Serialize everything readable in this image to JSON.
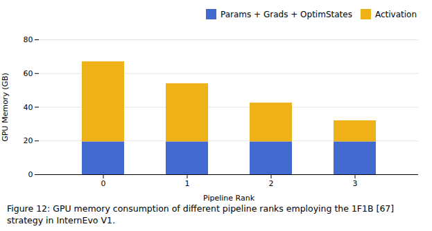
{
  "chart_data": {
    "type": "bar",
    "stacked": true,
    "xlabel": "Pipeline Rank",
    "ylabel": "GPU Memory (GB)",
    "caption": "Figure 12: GPU memory consumption of different pipeline ranks employing the 1F1B [67] strategy in InternEvo V1.",
    "categories": [
      0,
      1,
      2,
      3
    ],
    "series": [
      {
        "name": "Params + Grads + OptimStates",
        "values": [
          19.5,
          19.5,
          19.5,
          19.5
        ]
      },
      {
        "name": "Activation",
        "values": [
          47.5,
          34.5,
          23.0,
          12.5
        ]
      }
    ],
    "ylim": [
      0,
      80
    ],
    "yticks": [
      0,
      20,
      40,
      60,
      80
    ],
    "grid": true,
    "legend": "upper right"
  }
}
